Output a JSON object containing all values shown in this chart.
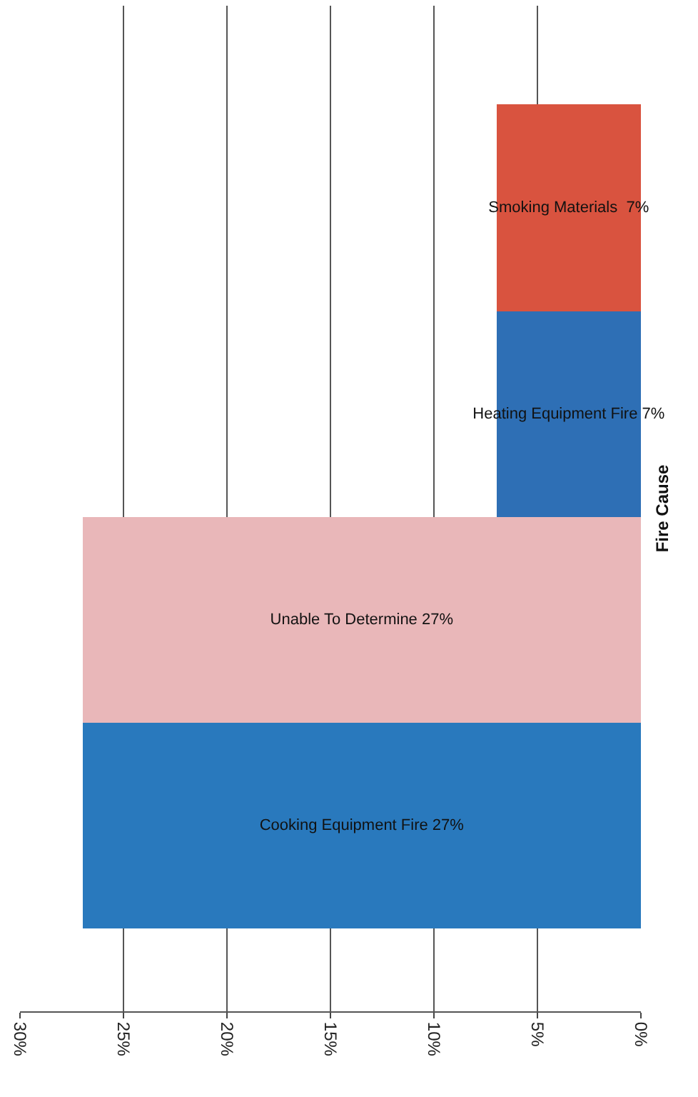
{
  "chart_data": {
    "type": "bar",
    "orientation": "horizontal",
    "ylabel": "Fire Cause",
    "categories": [
      null,
      null,
      null,
      null
    ],
    "values": [
      7,
      7,
      27,
      27
    ],
    "colors": [
      "#d9533f",
      "#2e6fb5",
      "#e9b7b9",
      "#2979bd"
    ],
    "value_labels": [
      "Smoking Materials  7%",
      "Heating Equipment Fire 7%",
      "Unable To Determine 27%",
      "Cooking Equipment Fire 27%"
    ],
    "xlim": [
      30,
      0
    ],
    "xticks": [
      {
        "value": 30,
        "label": "30%"
      },
      {
        "value": 25,
        "label": "25%"
      },
      {
        "value": 20,
        "label": "20%"
      },
      {
        "value": 15,
        "label": "15%"
      },
      {
        "value": 10,
        "label": "10%"
      },
      {
        "value": 5,
        "label": "5%"
      },
      {
        "value": 0,
        "label": "0%"
      }
    ],
    "grid": "x",
    "tick_labels": "x"
  }
}
